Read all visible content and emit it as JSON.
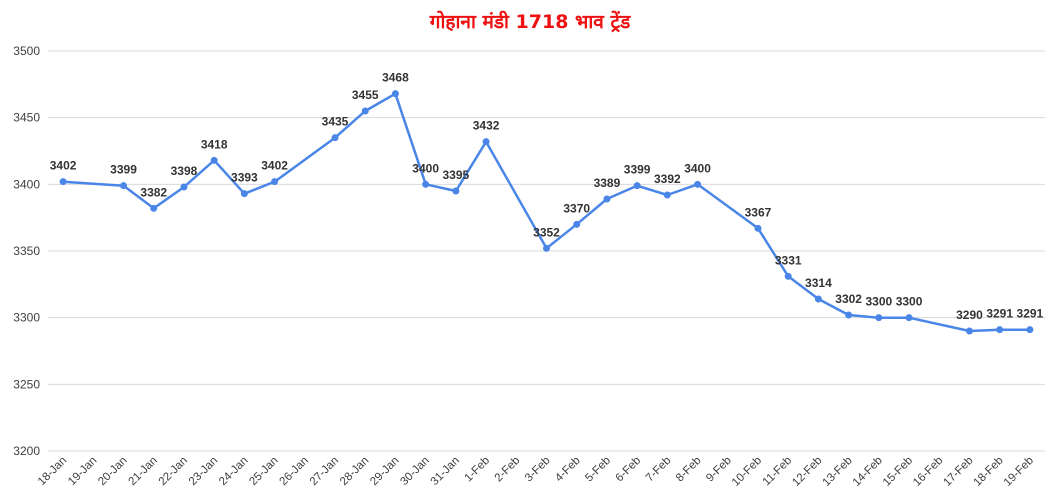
{
  "chart_data": {
    "type": "line",
    "title": "गोहाना मंडी 1718 भाव ट्रेंड",
    "xlabel": "",
    "ylabel": "",
    "ylim": [
      3200,
      3500
    ],
    "yticks": [
      3200,
      3250,
      3300,
      3350,
      3400,
      3450,
      3500
    ],
    "grid": true,
    "legend": "none",
    "line_color": "#4a86e8",
    "title_color": "#ee1111",
    "categories": [
      "18-Jan",
      "19-Jan",
      "20-Jan",
      "21-Jan",
      "22-Jan",
      "23-Jan",
      "24-Jan",
      "25-Jan",
      "26-Jan",
      "27-Jan",
      "28-Jan",
      "29-Jan",
      "30-Jan",
      "31-Jan",
      "1-Feb",
      "2-Feb",
      "3-Feb",
      "4-Feb",
      "5-Feb",
      "6-Feb",
      "7-Feb",
      "8-Feb",
      "9-Feb",
      "10-Feb",
      "11-Feb",
      "12-Feb",
      "13-Feb",
      "14-Feb",
      "15-Feb",
      "16-Feb",
      "17-Feb",
      "18-Feb",
      "19-Feb"
    ],
    "points": [
      {
        "x": "18-Jan",
        "y": 3402
      },
      {
        "x": "20-Jan",
        "y": 3399
      },
      {
        "x": "21-Jan",
        "y": 3382
      },
      {
        "x": "22-Jan",
        "y": 3398
      },
      {
        "x": "23-Jan",
        "y": 3418
      },
      {
        "x": "24-Jan",
        "y": 3393
      },
      {
        "x": "25-Jan",
        "y": 3402
      },
      {
        "x": "27-Jan",
        "y": 3435
      },
      {
        "x": "28-Jan",
        "y": 3455
      },
      {
        "x": "29-Jan",
        "y": 3468
      },
      {
        "x": "30-Jan",
        "y": 3400
      },
      {
        "x": "31-Jan",
        "y": 3395
      },
      {
        "x": "1-Feb",
        "y": 3432
      },
      {
        "x": "3-Feb",
        "y": 3352
      },
      {
        "x": "4-Feb",
        "y": 3370
      },
      {
        "x": "5-Feb",
        "y": 3389
      },
      {
        "x": "6-Feb",
        "y": 3399
      },
      {
        "x": "7-Feb",
        "y": 3392
      },
      {
        "x": "8-Feb",
        "y": 3400
      },
      {
        "x": "10-Feb",
        "y": 3367
      },
      {
        "x": "11-Feb",
        "y": 3331
      },
      {
        "x": "12-Feb",
        "y": 3314
      },
      {
        "x": "13-Feb",
        "y": 3302
      },
      {
        "x": "14-Feb",
        "y": 3300
      },
      {
        "x": "15-Feb",
        "y": 3300
      },
      {
        "x": "17-Feb",
        "y": 3290
      },
      {
        "x": "18-Feb",
        "y": 3291
      },
      {
        "x": "19-Feb",
        "y": 3291
      }
    ]
  }
}
